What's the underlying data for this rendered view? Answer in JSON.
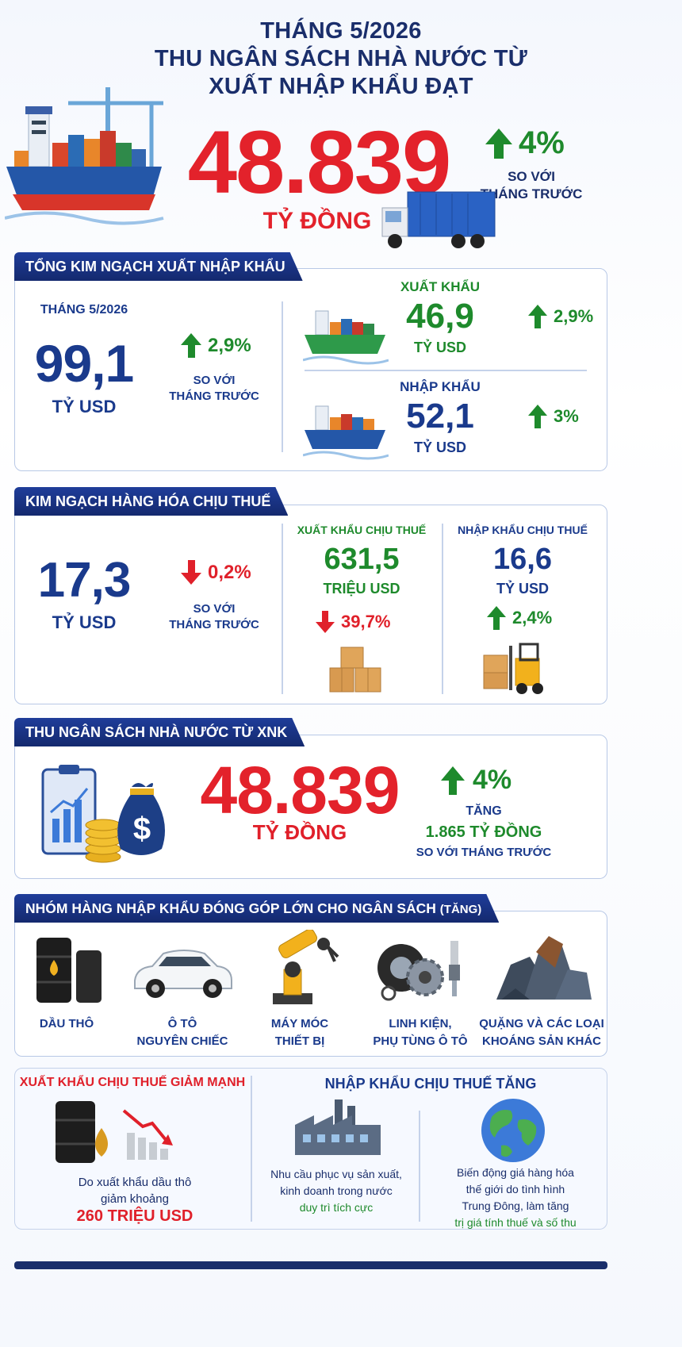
{
  "header": {
    "line1": "THÁNG 5/2026",
    "line2": "THU NGÂN SÁCH NHÀ NƯỚC TỪ",
    "line3": "XUẤT NHẬP KHẨU ĐẠT",
    "value": "48.839",
    "unit": "TỶ ĐỒNG",
    "change": "4%",
    "compare_line1": "SO VỚI",
    "compare_line2": "THÁNG TRƯỚC"
  },
  "trade": {
    "tab": "TỔNG KIM NGẠCH XUẤT NHẬP KHẨU",
    "period": "THÁNG 5/2026",
    "total": "99,1",
    "total_unit": "TỶ USD",
    "total_change": "2,9%",
    "compare_line1": "SO VỚI",
    "compare_line2": "THÁNG TRƯỚC",
    "export_label": "XUẤT KHẨU",
    "export_value": "46,9",
    "export_unit": "TỶ USD",
    "export_change": "2,9%",
    "import_label": "NHẬP KHẨU",
    "import_value": "52,1",
    "import_unit": "TỶ USD",
    "import_change": "3%"
  },
  "taxable": {
    "tab": "KIM NGẠCH HÀNG HÓA CHỊU THUẾ",
    "total": "17,3",
    "total_unit": "TỶ USD",
    "total_change": "0,2%",
    "compare_line1": "SO VỚI",
    "compare_line2": "THÁNG TRƯỚC",
    "export_label": "XUẤT KHẨU CHỊU THUẾ",
    "export_value": "631,5",
    "export_unit": "TRIỆU USD",
    "export_change": "39,7%",
    "import_label": "NHẬP KHẨU CHỊU THUẾ",
    "import_value": "16,6",
    "import_unit": "TỶ USD",
    "import_change": "2,4%"
  },
  "budget": {
    "tab": "THU NGÂN SÁCH NHÀ NƯỚC TỪ XNK",
    "value": "48.839",
    "unit": "TỶ ĐỒNG",
    "change": "4%",
    "increase_label": "TĂNG",
    "increase_value": "1.865 TỶ ĐỒNG",
    "compare": "SO VỚI THÁNG TRƯỚC"
  },
  "groups": {
    "tab": "NHÓM HÀNG NHẬP KHẨU ĐÓNG GÓP LỚN CHO NGÂN SÁCH",
    "tab_suffix": "(TĂNG)",
    "items": [
      {
        "line1": "DẦU THÔ",
        "line2": ""
      },
      {
        "line1": "Ô TÔ",
        "line2": "NGUYÊN CHIẾC"
      },
      {
        "line1": "MÁY MÓC",
        "line2": "THIẾT BỊ"
      },
      {
        "line1": "LINH KIỆN,",
        "line2": "PHỤ TÙNG Ô TÔ"
      },
      {
        "line1": "QUẶNG VÀ CÁC LOẠI",
        "line2": "KHOÁNG SẢN KHÁC"
      }
    ]
  },
  "notes": {
    "left_title": "XUẤT KHẨU CHỊU THUẾ GIẢM MẠNH",
    "left_line1": "Do xuất khẩu dầu thô",
    "left_line2": "giảm khoảng",
    "left_value": "260 TRIỆU USD",
    "right_title": "NHẬP KHẨU CHỊU THUẾ TĂNG",
    "mid_line1": "Nhu cầu phục vụ sản xuất,",
    "mid_line2": "kinh doanh trong nước",
    "mid_line3": "duy trì tích cực",
    "r_line1": "Biến động giá hàng hóa",
    "r_line2": "thế giới do tình hình",
    "r_line3": "Trung Đông, làm tăng",
    "r_line4": "trị giá tính thuế và số thu"
  },
  "colors": {
    "navy": "#1a2e6b",
    "red": "#e3222b",
    "green": "#1e8a2c",
    "tab": "#1f3d9a"
  }
}
